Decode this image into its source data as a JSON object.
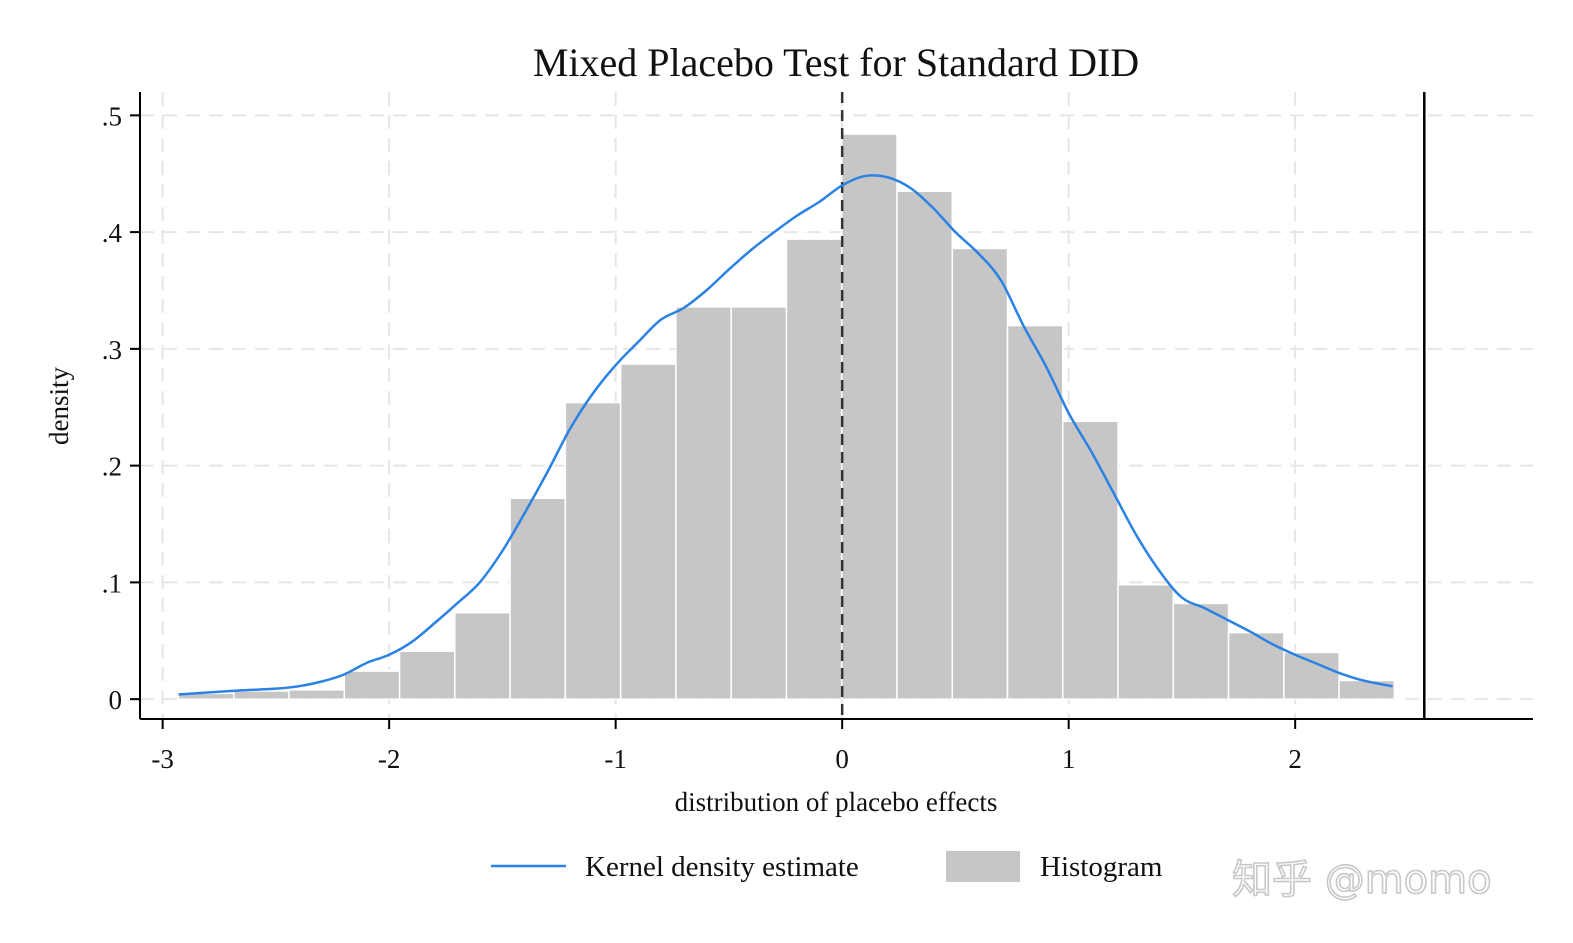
{
  "watermark": "知乎 @momo",
  "chart_data": {
    "type": "bar",
    "title": "Mixed Placebo Test for Standard DID",
    "xlabel": "distribution of placebo effects",
    "ylabel": "density",
    "xlim": [
      -3.1,
      3.05
    ],
    "ylim": [
      -0.017,
      0.52
    ],
    "x_ticks": [
      -3,
      -2,
      -1,
      0,
      1,
      2
    ],
    "x_tick_labels": [
      "-3",
      "-2",
      "-1",
      "0",
      "1",
      "2"
    ],
    "y_ticks": [
      0,
      0.1,
      0.2,
      0.3,
      0.4,
      0.5
    ],
    "y_tick_labels": [
      "0",
      ".1",
      ".2",
      ".3",
      ".4",
      ".5"
    ],
    "grid": true,
    "legend_position": "bottom",
    "legend": [
      "Kernel density estimate",
      "Histogram"
    ],
    "colors": {
      "histogram": "#c6c6c6",
      "histogram_edge": "#ffffff",
      "kde": "#2a82e4",
      "grid": "#e6e6e6",
      "axis": "#000000",
      "reference_line": "#333333"
    },
    "histogram": {
      "bin_edges": [
        -2.93,
        -2.686,
        -2.442,
        -2.198,
        -1.954,
        -1.71,
        -1.466,
        -1.222,
        -0.978,
        -0.734,
        -0.49,
        -0.246,
        -0.002,
        0.242,
        0.486,
        0.73,
        0.974,
        1.218,
        1.462,
        1.706,
        1.95,
        2.194,
        2.438
      ],
      "values": [
        0.005,
        0.007,
        0.008,
        0.024,
        0.041,
        0.074,
        0.172,
        0.254,
        0.287,
        0.336,
        0.336,
        0.394,
        0.484,
        0.435,
        0.386,
        0.32,
        0.238,
        0.098,
        0.082,
        0.057,
        0.04,
        0.016
      ]
    },
    "kde": {
      "x": [
        -2.93,
        -2.7,
        -2.5,
        -2.4,
        -2.3,
        -2.2,
        -2.1,
        -2.0,
        -1.9,
        -1.8,
        -1.7,
        -1.6,
        -1.5,
        -1.4,
        -1.3,
        -1.2,
        -1.1,
        -1.0,
        -0.9,
        -0.8,
        -0.7,
        -0.6,
        -0.5,
        -0.4,
        -0.3,
        -0.2,
        -0.1,
        0.0,
        0.1,
        0.2,
        0.3,
        0.4,
        0.5,
        0.6,
        0.7,
        0.8,
        0.9,
        1.0,
        1.1,
        1.2,
        1.3,
        1.4,
        1.5,
        1.6,
        1.7,
        1.8,
        1.9,
        2.0,
        2.1,
        2.2,
        2.3,
        2.43
      ],
      "y": [
        0.004,
        0.007,
        0.009,
        0.011,
        0.015,
        0.021,
        0.031,
        0.038,
        0.049,
        0.065,
        0.082,
        0.1,
        0.127,
        0.16,
        0.195,
        0.232,
        0.262,
        0.286,
        0.306,
        0.325,
        0.335,
        0.35,
        0.368,
        0.385,
        0.4,
        0.414,
        0.426,
        0.44,
        0.448,
        0.447,
        0.438,
        0.421,
        0.4,
        0.382,
        0.359,
        0.32,
        0.285,
        0.245,
        0.212,
        0.176,
        0.14,
        0.11,
        0.087,
        0.078,
        0.068,
        0.058,
        0.047,
        0.038,
        0.03,
        0.022,
        0.016,
        0.011
      ]
    },
    "reference_lines": [
      {
        "x": 0,
        "style": "dashed"
      },
      {
        "x": 2.57,
        "style": "solid"
      }
    ]
  }
}
